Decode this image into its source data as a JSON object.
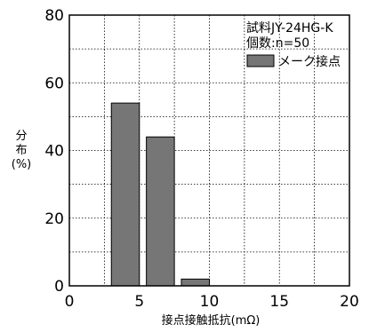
{
  "chart_data": {
    "type": "bar",
    "title": "",
    "xlabel": "接点接触抵抗(mΩ)",
    "ylabel_chars": [
      "分",
      "布"
    ],
    "ylabel_unit": "(%)",
    "xlim": [
      0,
      20
    ],
    "ylim": [
      0,
      80
    ],
    "xticks": [
      0,
      5,
      10,
      15,
      20
    ],
    "yticks": [
      0,
      20,
      40,
      60,
      80
    ],
    "grid": true,
    "bars": [
      {
        "x_start": 3,
        "x_end": 5,
        "value": 54
      },
      {
        "x_start": 5.5,
        "x_end": 7.5,
        "value": 44
      },
      {
        "x_start": 8,
        "x_end": 10,
        "value": 2
      }
    ],
    "bar_color": "#767676",
    "annotation": {
      "line1": "試料JY-24HG-K",
      "line2": "個数:n=50"
    },
    "legend": {
      "position": "top-right",
      "entries": [
        {
          "name": "メーク接点",
          "color": "#767676"
        }
      ]
    }
  }
}
